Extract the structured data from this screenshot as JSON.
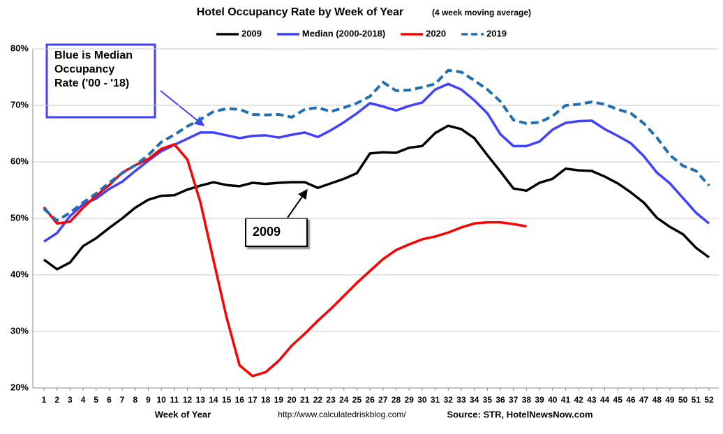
{
  "chart_data": {
    "type": "line",
    "title": "Hotel Occupancy Rate by  Week of Year",
    "subtitle": "(4 week moving average)",
    "x_label": "Week of Year",
    "footer_url": "http://www.calculatedriskblog.com/",
    "footer_source": "Source: STR, HotelNewsNow.com",
    "categories": [
      "1",
      "2",
      "3",
      "4",
      "5",
      "6",
      "7",
      "8",
      "9",
      "10",
      "11",
      "12",
      "13",
      "14",
      "15",
      "16",
      "17",
      "18",
      "19",
      "20",
      "21",
      "22",
      "23",
      "24",
      "25",
      "26",
      "27",
      "28",
      "29",
      "30",
      "31",
      "32",
      "33",
      "34",
      "35",
      "36",
      "37",
      "38",
      "39",
      "40",
      "41",
      "42",
      "43",
      "44",
      "45",
      "46",
      "47",
      "48",
      "49",
      "50",
      "51",
      "52"
    ],
    "ylim": [
      20,
      80
    ],
    "yticks": [
      {
        "value": 20,
        "label": "20%"
      },
      {
        "value": 30,
        "label": "30%"
      },
      {
        "value": 40,
        "label": "40%"
      },
      {
        "value": 50,
        "label": "50%"
      },
      {
        "value": 60,
        "label": "60%"
      },
      {
        "value": 70,
        "label": "70%"
      },
      {
        "value": 80,
        "label": "80%"
      }
    ],
    "grid": true,
    "legend": "top",
    "series": [
      {
        "name": "2009",
        "color": "#000000",
        "line_style": "solid",
        "values": [
          42.7,
          41,
          42.2,
          45.1,
          46.5,
          48.3,
          50,
          51.9,
          53.3,
          54,
          54.1,
          55.1,
          55.8,
          56.4,
          55.9,
          55.7,
          56.3,
          56.1,
          56.3,
          56.4,
          56.4,
          55.4,
          56.2,
          57,
          58,
          61.5,
          61.7,
          61.6,
          62.5,
          62.8,
          65.1,
          66.4,
          65.8,
          64.2,
          61.2,
          58.3,
          55.3,
          54.9,
          56.3,
          57,
          58.8,
          58.5,
          58.4,
          57.4,
          56.2,
          54.6,
          52.8,
          50.1,
          48.5,
          47.2,
          44.8,
          43.1
        ]
      },
      {
        "name": "Median (2000-2018)",
        "color": "#4040ff",
        "line_style": "solid",
        "values": [
          45.9,
          47.4,
          50.4,
          52.5,
          53.5,
          55.2,
          56.5,
          58.4,
          60.2,
          61.9,
          63,
          64.1,
          65.2,
          65.2,
          64.7,
          64.2,
          64.6,
          64.7,
          64.3,
          64.8,
          65.2,
          64.4,
          65.6,
          67,
          68.6,
          70.4,
          69.8,
          69.1,
          69.9,
          70.5,
          72.8,
          73.8,
          72.8,
          70.9,
          68.6,
          64.9,
          62.8,
          62.8,
          63.6,
          65.7,
          66.9,
          67.2,
          67.3,
          65.8,
          64.6,
          63.3,
          61,
          58.1,
          56.2,
          53.6,
          51,
          49.1
        ]
      },
      {
        "name": "2020",
        "color": "#ff0000",
        "line_style": "solid",
        "values": [
          52,
          49.1,
          49.4,
          51.9,
          54,
          55.9,
          58.1,
          59.4,
          60.5,
          62.3,
          63.1,
          60.4,
          52.8,
          42.6,
          32.5,
          24,
          22.1,
          22.8,
          24.8,
          27.5,
          29.6,
          31.9,
          34,
          36.3,
          38.6,
          40.7,
          42.8,
          44.4,
          45.4,
          46.3,
          46.8,
          47.5,
          48.4,
          49.1,
          49.3,
          49.3,
          49,
          48.6,
          null,
          null,
          null,
          null,
          null,
          null,
          null,
          null,
          null,
          null,
          null,
          null,
          null,
          null
        ]
      },
      {
        "name": "2019",
        "color": "#1f6fb4",
        "line_style": "dashed",
        "values": [
          51.7,
          49.6,
          51,
          52.8,
          54.4,
          56.3,
          58,
          59.4,
          61.2,
          63.5,
          64.8,
          66.3,
          67.5,
          68.9,
          69.4,
          69.3,
          68.4,
          68.3,
          68.4,
          67.9,
          69.3,
          69.6,
          68.9,
          69.6,
          70.4,
          71.6,
          74.1,
          72.6,
          72.7,
          73.2,
          73.8,
          76.2,
          75.9,
          74.4,
          72.8,
          70.7,
          67.4,
          66.8,
          67,
          68.1,
          70,
          70.2,
          70.6,
          70.2,
          69.3,
          68.6,
          66.8,
          64.3,
          61.2,
          59.3,
          58.4,
          55.8
        ]
      }
    ],
    "annotations": [
      {
        "lines": [
          "Blue is Median",
          "Occupancy",
          "Rate ('00 - '18)"
        ],
        "color": "#4040ff"
      },
      {
        "lines": [
          "2009"
        ],
        "color": "#000000"
      }
    ]
  }
}
